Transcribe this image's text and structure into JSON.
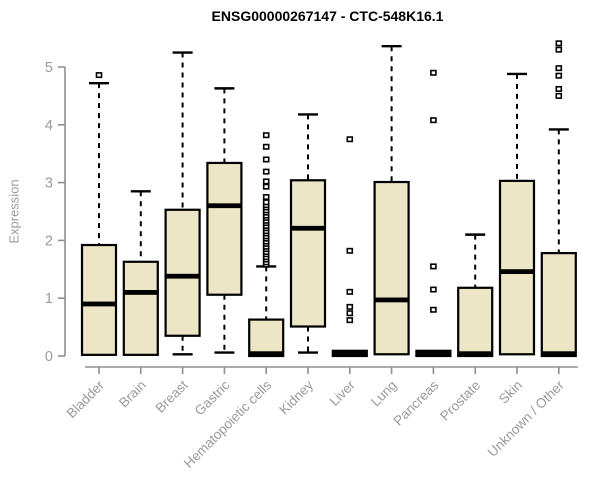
{
  "chart_data": {
    "type": "boxplot",
    "title": "ENSG00000267147 - CTC-548K16.1",
    "xlabel": "",
    "ylabel": "Expression",
    "ylim": [
      0,
      5.5
    ],
    "yticks": [
      0,
      1,
      2,
      3,
      4,
      5
    ],
    "grid": false,
    "legend": "none",
    "categories": [
      "Bladder",
      "Brain",
      "Breast",
      "Gastric",
      "Hematopoietic cells",
      "Kidney",
      "Liver",
      "Lung",
      "Pancreas",
      "Prostate",
      "Skin",
      "Unknown / Other"
    ],
    "boxes": [
      {
        "category": "Bladder",
        "q1": 0.02,
        "median": 0.9,
        "q3": 1.92,
        "whisker_low": 0.02,
        "whisker_high": 4.72,
        "outliers": [
          4.86
        ]
      },
      {
        "category": "Brain",
        "q1": 0.02,
        "median": 1.1,
        "q3": 1.63,
        "whisker_low": 0.02,
        "whisker_high": 2.85,
        "outliers": []
      },
      {
        "category": "Breast",
        "q1": 0.35,
        "median": 1.38,
        "q3": 2.53,
        "whisker_low": 0.03,
        "whisker_high": 5.25,
        "outliers": []
      },
      {
        "category": "Gastric",
        "q1": 1.06,
        "median": 2.6,
        "q3": 3.34,
        "whisker_low": 0.06,
        "whisker_high": 4.63,
        "outliers": []
      },
      {
        "category": "Hematopoietic cells",
        "q1": 0.0,
        "median": 0.04,
        "q3": 0.63,
        "whisker_low": 0.0,
        "whisker_high": 1.55,
        "outliers": [
          1.58,
          1.62,
          1.67,
          1.71,
          1.76,
          1.8,
          1.85,
          1.89,
          1.94,
          1.98,
          2.03,
          2.07,
          2.12,
          2.16,
          2.21,
          2.25,
          2.3,
          2.34,
          2.39,
          2.43,
          2.48,
          2.52,
          2.57,
          2.61,
          2.66,
          2.75,
          2.93,
          3.02,
          3.19,
          3.4,
          3.62,
          3.82
        ]
      },
      {
        "category": "Kidney",
        "q1": 0.51,
        "median": 2.21,
        "q3": 3.04,
        "whisker_low": 0.06,
        "whisker_high": 4.18,
        "outliers": []
      },
      {
        "category": "Liver",
        "q1": 0.0,
        "median": 0.04,
        "q3": 0.09,
        "whisker_low": 0.0,
        "whisker_high": 0.09,
        "outliers": [
          0.62,
          0.74,
          0.85,
          1.11,
          1.82,
          3.75
        ]
      },
      {
        "category": "Lung",
        "q1": 0.03,
        "median": 0.97,
        "q3": 3.01,
        "whisker_low": 0.03,
        "whisker_high": 5.36,
        "outliers": []
      },
      {
        "category": "Pancreas",
        "q1": 0.0,
        "median": 0.04,
        "q3": 0.09,
        "whisker_low": 0.0,
        "whisker_high": 0.09,
        "outliers": [
          0.8,
          1.15,
          1.55,
          4.08,
          4.9
        ]
      },
      {
        "category": "Prostate",
        "q1": 0.0,
        "median": 0.04,
        "q3": 1.18,
        "whisker_low": 0.0,
        "whisker_high": 2.1,
        "outliers": []
      },
      {
        "category": "Skin",
        "q1": 0.03,
        "median": 1.46,
        "q3": 3.03,
        "whisker_low": 0.03,
        "whisker_high": 4.88,
        "outliers": []
      },
      {
        "category": "Unknown / Other",
        "q1": 0.0,
        "median": 0.04,
        "q3": 1.78,
        "whisker_low": 0.0,
        "whisker_high": 3.92,
        "outliers": [
          4.5,
          4.62,
          4.85,
          4.98,
          5.3,
          5.41
        ]
      }
    ],
    "colors": {
      "box_fill": "#ece6c6",
      "box_border": "#000000",
      "median": "#000000",
      "whisker": "#000000",
      "axis": "#8f8f8f",
      "tick_label": "#9a9a9a",
      "title": "#000000",
      "background": "#ffffff"
    }
  }
}
